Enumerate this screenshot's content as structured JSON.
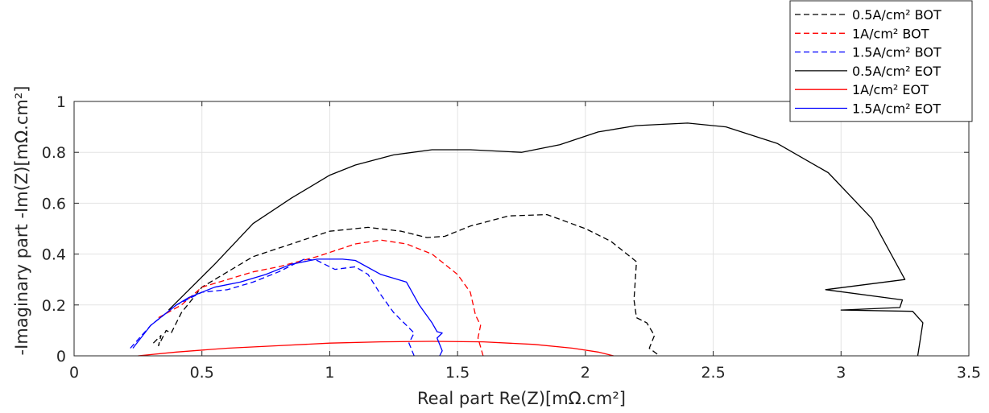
{
  "chart_data": {
    "type": "line",
    "title": "",
    "xlabel": "Real part Re(Z)[mΩ.cm²]",
    "ylabel": "-Imaginary part -Im(Z)[mΩ.cm²]",
    "xlim": [
      0,
      3.5
    ],
    "ylim": [
      0,
      1
    ],
    "xticks": [
      0,
      0.5,
      1,
      1.5,
      2,
      2.5,
      3,
      3.5
    ],
    "xtick_labels": [
      "0",
      "0.5",
      "1",
      "1.5",
      "2",
      "2.5",
      "3",
      "3.5"
    ],
    "yticks": [
      0,
      0.2,
      0.4,
      0.6,
      0.8,
      1
    ],
    "ytick_labels": [
      "0",
      "0.2",
      "0.4",
      "0.6",
      "0.8",
      "1"
    ],
    "grid": true,
    "legend_position": "top-right",
    "series": [
      {
        "name": "0.5A/cm² BOT",
        "color": "#000000",
        "dash": "dashed",
        "points": [
          [
            0.31,
            0.05
          ],
          [
            0.34,
            0.08
          ],
          [
            0.33,
            0.04
          ],
          [
            0.36,
            0.1
          ],
          [
            0.38,
            0.09
          ],
          [
            0.42,
            0.17
          ],
          [
            0.5,
            0.27
          ],
          [
            0.6,
            0.33
          ],
          [
            0.7,
            0.39
          ],
          [
            0.85,
            0.44
          ],
          [
            1.0,
            0.49
          ],
          [
            1.15,
            0.505
          ],
          [
            1.28,
            0.49
          ],
          [
            1.38,
            0.465
          ],
          [
            1.45,
            0.47
          ],
          [
            1.55,
            0.51
          ],
          [
            1.7,
            0.55
          ],
          [
            1.85,
            0.555
          ],
          [
            2.0,
            0.5
          ],
          [
            2.1,
            0.45
          ],
          [
            2.2,
            0.37
          ],
          [
            2.19,
            0.22
          ],
          [
            2.2,
            0.15
          ],
          [
            2.24,
            0.13
          ],
          [
            2.27,
            0.08
          ],
          [
            2.25,
            0.03
          ],
          [
            2.29,
            0.0
          ]
        ]
      },
      {
        "name": "1A/cm² BOT",
        "color": "#ff0000",
        "dash": "dashed",
        "points": [
          [
            0.33,
            0.15
          ],
          [
            0.42,
            0.2
          ],
          [
            0.5,
            0.27
          ],
          [
            0.6,
            0.3
          ],
          [
            0.7,
            0.33
          ],
          [
            0.8,
            0.35
          ],
          [
            0.95,
            0.39
          ],
          [
            1.1,
            0.44
          ],
          [
            1.2,
            0.455
          ],
          [
            1.3,
            0.44
          ],
          [
            1.4,
            0.4
          ],
          [
            1.5,
            0.32
          ],
          [
            1.55,
            0.25
          ],
          [
            1.57,
            0.16
          ],
          [
            1.59,
            0.12
          ],
          [
            1.58,
            0.07
          ],
          [
            1.6,
            0.0
          ]
        ]
      },
      {
        "name": "1.5A/cm² BOT",
        "color": "#0000ff",
        "dash": "dashed",
        "points": [
          [
            0.22,
            0.03
          ],
          [
            0.3,
            0.12
          ],
          [
            0.4,
            0.2
          ],
          [
            0.5,
            0.25
          ],
          [
            0.6,
            0.26
          ],
          [
            0.7,
            0.29
          ],
          [
            0.8,
            0.33
          ],
          [
            0.9,
            0.38
          ],
          [
            0.95,
            0.375
          ],
          [
            1.02,
            0.34
          ],
          [
            1.1,
            0.35
          ],
          [
            1.15,
            0.32
          ],
          [
            1.2,
            0.24
          ],
          [
            1.25,
            0.17
          ],
          [
            1.3,
            0.12
          ],
          [
            1.33,
            0.09
          ],
          [
            1.31,
            0.05
          ],
          [
            1.33,
            0.0
          ]
        ]
      },
      {
        "name": "0.5A/cm² EOT",
        "color": "#000000",
        "dash": "solid",
        "points": [
          [
            0.37,
            0.18
          ],
          [
            0.45,
            0.26
          ],
          [
            0.55,
            0.36
          ],
          [
            0.7,
            0.52
          ],
          [
            0.85,
            0.62
          ],
          [
            1.0,
            0.71
          ],
          [
            1.1,
            0.75
          ],
          [
            1.25,
            0.79
          ],
          [
            1.4,
            0.81
          ],
          [
            1.55,
            0.81
          ],
          [
            1.75,
            0.8
          ],
          [
            1.9,
            0.83
          ],
          [
            2.05,
            0.88
          ],
          [
            2.2,
            0.905
          ],
          [
            2.4,
            0.915
          ],
          [
            2.55,
            0.9
          ],
          [
            2.75,
            0.835
          ],
          [
            2.95,
            0.72
          ],
          [
            3.12,
            0.54
          ],
          [
            3.25,
            0.3
          ],
          [
            2.94,
            0.26
          ],
          [
            3.24,
            0.22
          ],
          [
            3.23,
            0.19
          ],
          [
            3.0,
            0.18
          ],
          [
            3.28,
            0.175
          ],
          [
            3.32,
            0.13
          ],
          [
            3.3,
            0.0
          ]
        ]
      },
      {
        "name": "1A/cm² EOT",
        "color": "#ff0000",
        "dash": "solid",
        "points": [
          [
            0.25,
            0.0
          ],
          [
            0.4,
            0.015
          ],
          [
            0.6,
            0.03
          ],
          [
            0.8,
            0.04
          ],
          [
            1.0,
            0.05
          ],
          [
            1.2,
            0.055
          ],
          [
            1.4,
            0.057
          ],
          [
            1.6,
            0.055
          ],
          [
            1.8,
            0.045
          ],
          [
            1.95,
            0.03
          ],
          [
            2.05,
            0.015
          ],
          [
            2.11,
            0.0
          ]
        ]
      },
      {
        "name": "1.5A/cm² EOT",
        "color": "#0000ff",
        "dash": "solid",
        "points": [
          [
            0.23,
            0.03
          ],
          [
            0.3,
            0.12
          ],
          [
            0.4,
            0.2
          ],
          [
            0.45,
            0.23
          ],
          [
            0.55,
            0.27
          ],
          [
            0.65,
            0.29
          ],
          [
            0.75,
            0.32
          ],
          [
            0.85,
            0.36
          ],
          [
            0.95,
            0.38
          ],
          [
            1.05,
            0.38
          ],
          [
            1.1,
            0.375
          ],
          [
            1.2,
            0.32
          ],
          [
            1.3,
            0.29
          ],
          [
            1.35,
            0.2
          ],
          [
            1.4,
            0.13
          ],
          [
            1.42,
            0.095
          ],
          [
            1.44,
            0.09
          ],
          [
            1.42,
            0.07
          ],
          [
            1.44,
            0.02
          ],
          [
            1.43,
            0.0
          ]
        ]
      }
    ]
  }
}
